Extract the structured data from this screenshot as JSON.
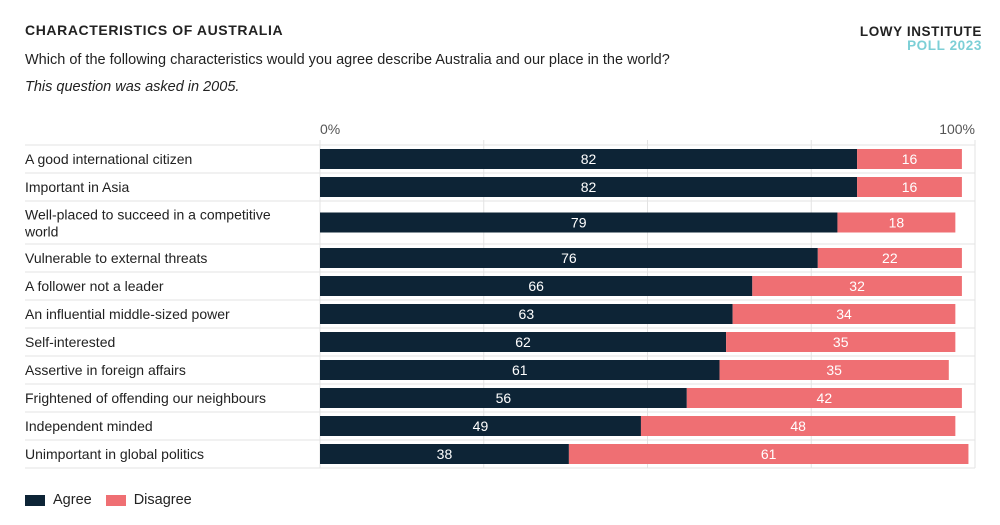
{
  "header": {
    "title": "CHARACTERISTICS OF AUSTRALIA",
    "subtitle": "Which of the following characteristics would you agree describe Australia and our place in the world?",
    "note": "This question was asked in 2005.",
    "brand_org": "LOWY INSTITUTE",
    "brand_poll": "POLL 2023"
  },
  "colors": {
    "agree": "#0d2436",
    "disagree": "#ef6f73",
    "grid": "#e3e3e3",
    "poll_accent": "#7ccfd6"
  },
  "legend": {
    "agree_label": "Agree",
    "disagree_label": "Disagree"
  },
  "chart_data": {
    "type": "bar",
    "orientation": "horizontal",
    "stacked": true,
    "title": "CHARACTERISTICS OF AUSTRALIA",
    "xlim": [
      0,
      100
    ],
    "tick_labels": {
      "start": "0%",
      "end": "100%"
    },
    "categories": [
      "A good international citizen",
      "Important in Asia",
      "Well-placed to succeed in a competitive world",
      "Vulnerable to external threats",
      "A follower not a leader",
      "An influential middle-sized power",
      "Self-interested",
      "Assertive in foreign affairs",
      "Frightened of offending our neighbours",
      "Independent minded",
      "Unimportant in global politics"
    ],
    "series": [
      {
        "name": "Agree",
        "values": [
          82,
          82,
          79,
          76,
          66,
          63,
          62,
          61,
          56,
          49,
          38
        ]
      },
      {
        "name": "Disagree",
        "values": [
          16,
          16,
          18,
          22,
          32,
          34,
          35,
          35,
          42,
          48,
          61
        ]
      }
    ],
    "legend_position": "bottom-left"
  }
}
